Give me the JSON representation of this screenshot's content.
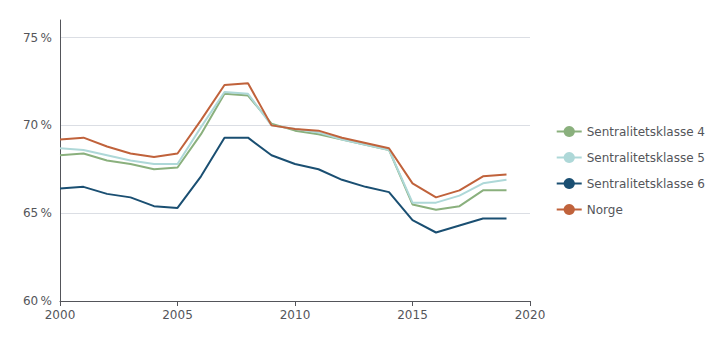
{
  "chart_data": {
    "type": "line",
    "x": [
      2000,
      2001,
      2002,
      2003,
      2004,
      2005,
      2006,
      2007,
      2008,
      2009,
      2010,
      2011,
      2012,
      2013,
      2014,
      2015,
      2016,
      2017,
      2018,
      2019
    ],
    "series": [
      {
        "name": "Sentralitetsklasse 4",
        "color": "#8ab07d",
        "values": [
          68.3,
          68.4,
          68.0,
          67.8,
          67.5,
          67.6,
          69.5,
          71.8,
          71.7,
          70.1,
          69.7,
          69.5,
          69.2,
          68.9,
          68.6,
          65.5,
          65.2,
          65.4,
          66.3,
          66.3
        ]
      },
      {
        "name": "Sentralitetsklasse 5",
        "color": "#aed8d8",
        "values": [
          68.7,
          68.6,
          68.3,
          68.0,
          67.8,
          67.8,
          69.9,
          71.9,
          71.8,
          70.0,
          69.8,
          69.6,
          69.2,
          68.9,
          68.6,
          65.6,
          65.6,
          66.0,
          66.7,
          66.9
        ]
      },
      {
        "name": "Sentralitetsklasse 6",
        "color": "#1a4f72",
        "values": [
          66.4,
          66.5,
          66.1,
          65.9,
          65.4,
          65.3,
          67.1,
          69.3,
          69.3,
          68.3,
          67.8,
          67.5,
          66.9,
          66.5,
          66.2,
          64.6,
          63.9,
          64.3,
          64.7,
          64.7
        ]
      },
      {
        "name": "Norge",
        "color": "#c0623b",
        "values": [
          69.2,
          69.3,
          68.8,
          68.4,
          68.2,
          68.4,
          70.3,
          72.3,
          72.4,
          70.0,
          69.8,
          69.7,
          69.3,
          69.0,
          68.7,
          66.7,
          65.9,
          66.3,
          67.1,
          67.2
        ]
      }
    ],
    "xlim": [
      2000,
      2020
    ],
    "xticks": [
      2000,
      2005,
      2010,
      2015,
      2020
    ],
    "ylim": [
      60,
      76
    ],
    "yticks": [
      {
        "value": 60,
        "label": "60 %"
      },
      {
        "value": 65,
        "label": "65 %"
      },
      {
        "value": 70,
        "label": "70 %"
      },
      {
        "value": 75,
        "label": "75 %"
      }
    ],
    "grid": true,
    "legend": "right"
  }
}
